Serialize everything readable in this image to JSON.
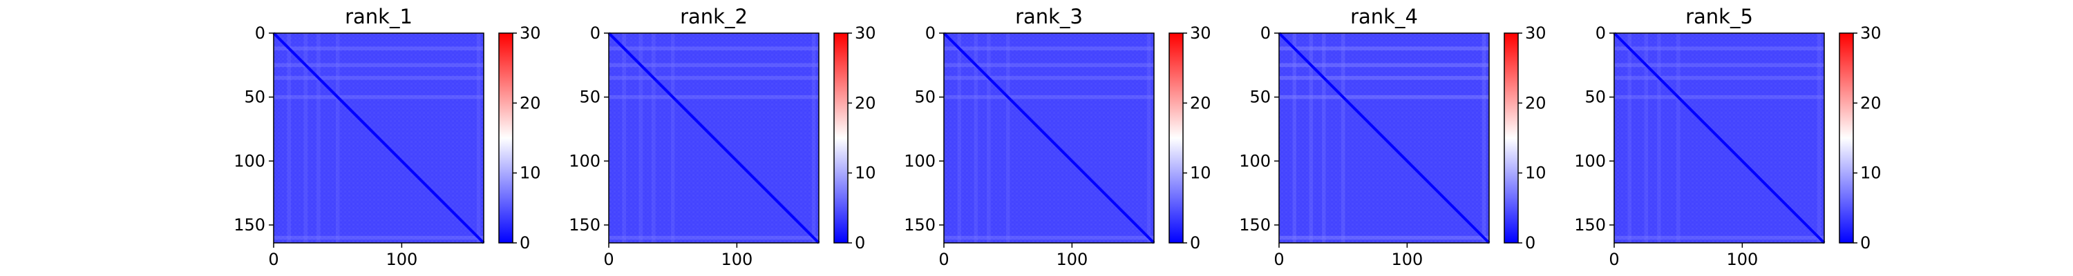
{
  "chart_data": [
    {
      "type": "heatmap",
      "title": "rank_1",
      "xlabel": "",
      "ylabel": "",
      "xlim": [
        0,
        164
      ],
      "ylim": [
        164,
        0
      ],
      "x_ticks": [
        "0",
        "100"
      ],
      "y_ticks": [
        "0",
        "50",
        "100",
        "150"
      ],
      "colorbar": {
        "range": [
          0,
          30
        ],
        "ticks": [
          "0",
          "10",
          "20",
          "30"
        ],
        "colormap": "bwr"
      },
      "values_summary": {
        "diagonal": 0,
        "typical_off_diagonal": 4,
        "bright_rows_approx": [
          12,
          25,
          35,
          50,
          160
        ],
        "bright_row_value": 7
      }
    },
    {
      "type": "heatmap",
      "title": "rank_2",
      "xlabel": "",
      "ylabel": "",
      "xlim": [
        0,
        164
      ],
      "ylim": [
        164,
        0
      ],
      "x_ticks": [
        "0",
        "100"
      ],
      "y_ticks": [
        "0",
        "50",
        "100",
        "150"
      ],
      "colorbar": {
        "range": [
          0,
          30
        ],
        "ticks": [
          "0",
          "10",
          "20",
          "30"
        ],
        "colormap": "bwr"
      },
      "values_summary": {
        "diagonal": 0,
        "typical_off_diagonal": 4,
        "bright_rows_approx": [
          12,
          25,
          35,
          50,
          160
        ],
        "bright_row_value": 7
      }
    },
    {
      "type": "heatmap",
      "title": "rank_3",
      "xlabel": "",
      "ylabel": "",
      "xlim": [
        0,
        164
      ],
      "ylim": [
        164,
        0
      ],
      "x_ticks": [
        "0",
        "100"
      ],
      "y_ticks": [
        "0",
        "50",
        "100",
        "150"
      ],
      "colorbar": {
        "range": [
          0,
          30
        ],
        "ticks": [
          "0",
          "10",
          "20",
          "30"
        ],
        "colormap": "bwr"
      },
      "values_summary": {
        "diagonal": 0,
        "typical_off_diagonal": 4,
        "bright_rows_approx": [
          12,
          25,
          35,
          50,
          160
        ],
        "bright_row_value": 7
      }
    },
    {
      "type": "heatmap",
      "title": "rank_4",
      "xlabel": "",
      "ylabel": "",
      "xlim": [
        0,
        164
      ],
      "ylim": [
        164,
        0
      ],
      "x_ticks": [
        "0",
        "100"
      ],
      "y_ticks": [
        "0",
        "50",
        "100",
        "150"
      ],
      "colorbar": {
        "range": [
          0,
          30
        ],
        "ticks": [
          "0",
          "10",
          "20",
          "30"
        ],
        "colormap": "bwr"
      },
      "values_summary": {
        "diagonal": 0,
        "typical_off_diagonal": 4,
        "bright_rows_approx": [
          12,
          25,
          35,
          50,
          160
        ],
        "bright_row_value": 8
      }
    },
    {
      "type": "heatmap",
      "title": "rank_5",
      "xlabel": "",
      "ylabel": "",
      "xlim": [
        0,
        164
      ],
      "ylim": [
        164,
        0
      ],
      "x_ticks": [
        "0",
        "100"
      ],
      "y_ticks": [
        "0",
        "50",
        "100",
        "150"
      ],
      "colorbar": {
        "range": [
          0,
          30
        ],
        "ticks": [
          "0",
          "10",
          "20",
          "30"
        ],
        "colormap": "bwr"
      },
      "values_summary": {
        "diagonal": 0,
        "typical_off_diagonal": 4,
        "bright_rows_approx": [
          12,
          25,
          35,
          50,
          160
        ],
        "bright_row_value": 7
      }
    }
  ],
  "colors": {
    "low": "#0000ff",
    "mid": "#ffffff",
    "high": "#ff0000"
  }
}
